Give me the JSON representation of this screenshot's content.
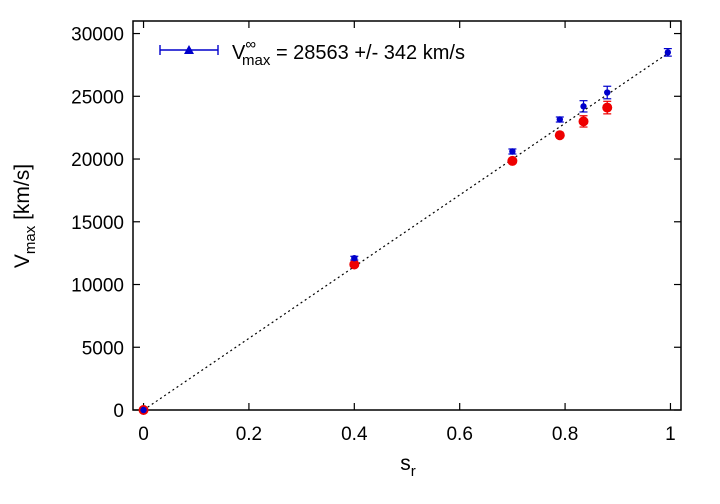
{
  "chart_data": {
    "type": "scatter",
    "xlabel": {
      "main": "s",
      "sub": "r"
    },
    "ylabel": {
      "main": "V",
      "sub": "max",
      "suffix": " [km/s]"
    },
    "xlim": [
      -0.02,
      1.02
    ],
    "ylim": [
      0,
      31000
    ],
    "x_ticks": [
      0,
      0.2,
      0.4,
      0.6,
      0.8,
      1
    ],
    "x_tick_labels": [
      "0",
      "0.2",
      "0.4",
      "0.6",
      "0.8",
      "1"
    ],
    "y_ticks": [
      0,
      5000,
      10000,
      15000,
      20000,
      25000,
      30000
    ],
    "y_tick_labels": [
      "0",
      "5000",
      "10000",
      "15000",
      "20000",
      "25000",
      "30000"
    ],
    "legend": {
      "position": "top-left",
      "label_main": "V",
      "label_sup": "∞",
      "label_sub": "max",
      "label_rest": " = 28563 +/- 342 km/s"
    },
    "fit_line": {
      "name": "linear fit",
      "x": [
        0,
        1
      ],
      "y": [
        0,
        28563
      ],
      "style": "dotted"
    },
    "series": [
      {
        "name": "blue points with error bars",
        "color": "#0000cc",
        "marker": "circle-small",
        "points": [
          {
            "x": 0.0,
            "y": 0,
            "err": 0
          },
          {
            "x": 0.4,
            "y": 12100,
            "err": 150
          },
          {
            "x": 0.7,
            "y": 20600,
            "err": 200
          },
          {
            "x": 0.79,
            "y": 23150,
            "err": 200
          },
          {
            "x": 0.835,
            "y": 24200,
            "err": 450
          },
          {
            "x": 0.88,
            "y": 25300,
            "err": 500
          },
          {
            "x": 0.995,
            "y": 28500,
            "err": 300
          }
        ]
      },
      {
        "name": "red points",
        "color": "#ee0000",
        "marker": "circle-large",
        "points": [
          {
            "x": 0.0,
            "y": 0,
            "err": 0
          },
          {
            "x": 0.4,
            "y": 11600,
            "err": 0
          },
          {
            "x": 0.7,
            "y": 19850,
            "err": 0
          },
          {
            "x": 0.79,
            "y": 21900,
            "err": 0
          },
          {
            "x": 0.835,
            "y": 23000,
            "err": 450
          },
          {
            "x": 0.88,
            "y": 24100,
            "err": 500
          }
        ]
      }
    ],
    "grid": false
  }
}
